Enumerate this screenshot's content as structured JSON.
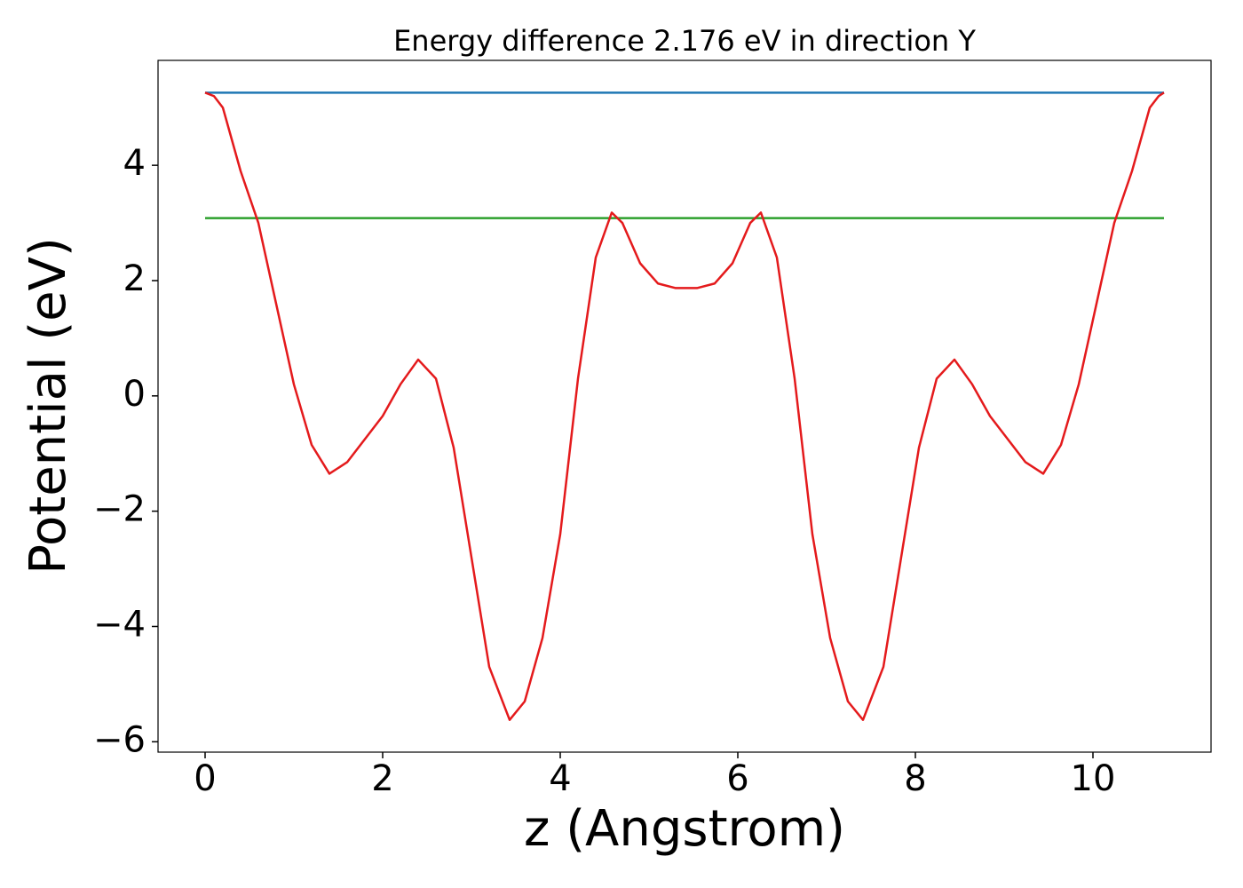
{
  "chart_data": {
    "type": "line",
    "title": "Energy difference 2.176 eV in direction Y",
    "x_label": "z (Angstrom)",
    "y_label": "Potential (eV)",
    "xlim": [
      -0.53,
      11.33
    ],
    "ylim": [
      -6.18,
      5.82
    ],
    "xticks": [
      0,
      2,
      4,
      6,
      8,
      10
    ],
    "yticks": [
      {
        "value": -6,
        "label": "−6"
      },
      {
        "value": -4,
        "label": "−4"
      },
      {
        "value": -2,
        "label": "−2"
      },
      0,
      2,
      4
    ],
    "grid": false,
    "series": [
      {
        "color": "#1f77b4",
        "x": [
          0,
          10.8
        ],
        "values": [
          5.26,
          5.26
        ]
      },
      {
        "color": "#2ca02c",
        "x": [
          0,
          10.8
        ],
        "values": [
          3.084,
          3.084
        ]
      },
      {
        "color": "#e41a1c",
        "x": [
          0,
          0.1,
          0.2,
          0.4,
          0.6,
          0.8,
          1.0,
          1.2,
          1.4,
          1.6,
          1.8,
          2.0,
          2.2,
          2.4,
          2.6,
          2.8,
          3.0,
          3.2,
          3.43,
          3.6,
          3.8,
          4.0,
          4.2,
          4.4,
          4.58,
          4.7,
          4.9,
          5.1,
          5.3,
          5.42,
          5.54,
          5.74,
          5.94,
          6.14,
          6.26,
          6.44,
          6.64,
          6.84,
          7.04,
          7.24,
          7.41,
          7.64,
          7.84,
          8.04,
          8.24,
          8.44,
          8.64,
          8.84,
          9.04,
          9.24,
          9.44,
          9.64,
          9.84,
          10.04,
          10.24,
          10.44,
          10.64,
          10.74,
          10.8
        ],
        "values": [
          5.26,
          5.2,
          5.0,
          3.9,
          3.0,
          1.6,
          0.2,
          -0.85,
          -1.35,
          -1.15,
          -0.75,
          -0.35,
          0.2,
          0.63,
          0.3,
          -0.9,
          -2.8,
          -4.7,
          -5.62,
          -5.3,
          -4.2,
          -2.4,
          0.3,
          2.4,
          3.18,
          3.0,
          2.3,
          1.95,
          1.87,
          1.87,
          1.87,
          1.95,
          2.3,
          3.0,
          3.18,
          2.4,
          0.3,
          -2.4,
          -4.2,
          -5.3,
          -5.62,
          -4.7,
          -2.8,
          -0.9,
          0.3,
          0.63,
          0.2,
          -0.35,
          -0.75,
          -1.15,
          -1.35,
          -0.85,
          0.2,
          1.6,
          3.0,
          3.9,
          5.0,
          5.2,
          5.26
        ]
      }
    ]
  }
}
